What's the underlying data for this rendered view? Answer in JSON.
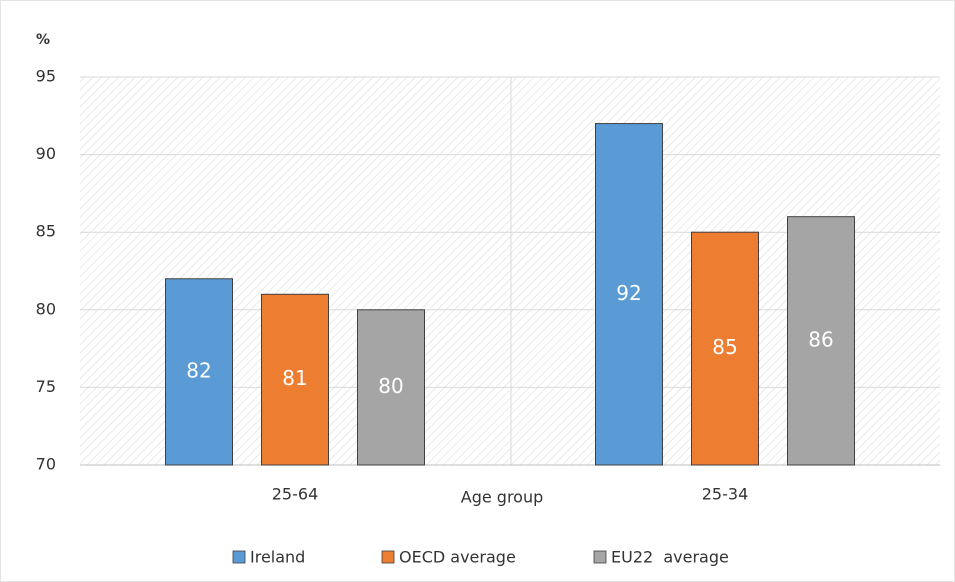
{
  "chart_data": {
    "type": "bar",
    "y_label": "%",
    "x_label": "Age group",
    "categories": [
      "25-64",
      "25-34"
    ],
    "series": [
      {
        "name": "Ireland",
        "color": "#5b9bd5",
        "values": [
          82,
          92
        ]
      },
      {
        "name": "OECD average",
        "color": "#ed7d31",
        "values": [
          81,
          85
        ]
      },
      {
        "name": "EU22  average",
        "color": "#a5a5a5",
        "values": [
          80,
          86
        ]
      }
    ],
    "ylim": [
      70,
      95
    ],
    "yticks": [
      70,
      75,
      80,
      85,
      90,
      95
    ],
    "grid": true,
    "legend": "bottom"
  }
}
